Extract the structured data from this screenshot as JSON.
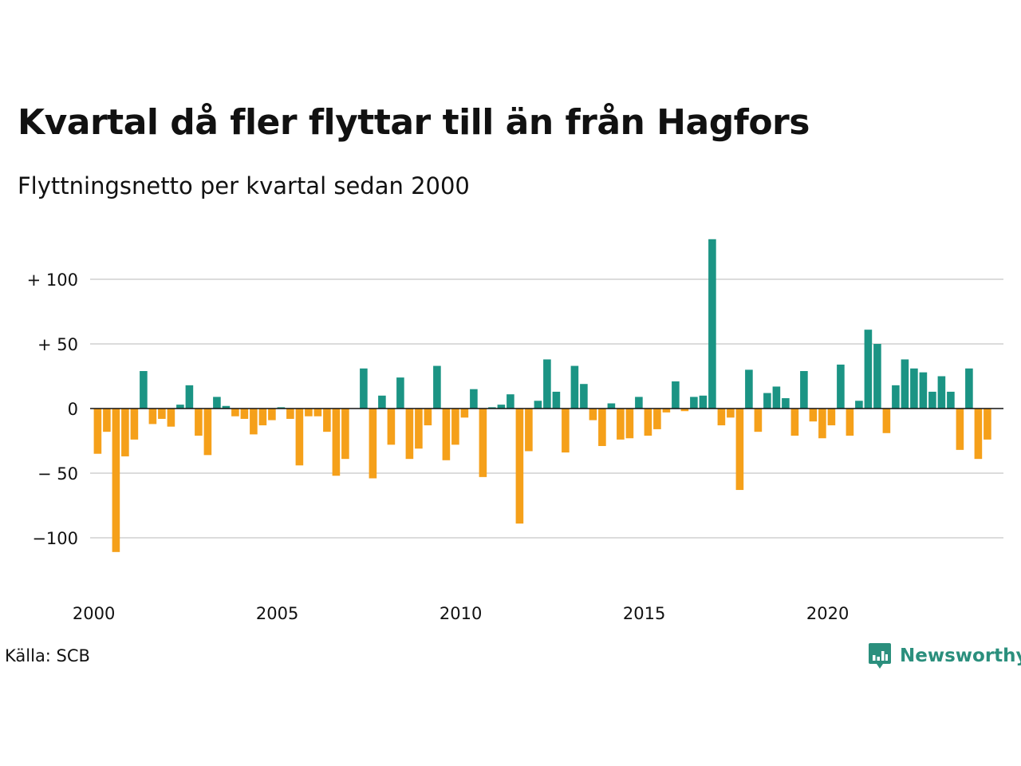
{
  "title": "Kvartal då fler flyttar till än från Hagfors",
  "subtitle": "Flyttningsnetto per kvartal sedan 2000",
  "source": "Källa: SCB",
  "brand": {
    "name": "Newsworthy",
    "icon": "chart-bubble-icon",
    "color": "#2b8f7d"
  },
  "chart_data": {
    "type": "bar",
    "start_year": 2000,
    "x_ticks": [
      "2000",
      "2005",
      "2010",
      "2015",
      "2020"
    ],
    "y_ticks": [
      {
        "value": 100,
        "label": "+ 100"
      },
      {
        "value": 50,
        "label": "+  50"
      },
      {
        "value": 0,
        "label": "0"
      },
      {
        "value": -50,
        "label": "− 50"
      },
      {
        "value": -100,
        "label": "−100"
      }
    ],
    "ylim": [
      -140,
      132
    ],
    "grid": true,
    "colors": {
      "positive": "#1b9484",
      "negative": "#f5a01a",
      "grid": "#dcdcdc",
      "zero": "#111111"
    },
    "values": [
      -35,
      -18,
      -111,
      -37,
      -24,
      29,
      -12,
      -8,
      -14,
      3,
      18,
      -21,
      -36,
      9,
      2,
      -6,
      -8,
      -20,
      -13,
      -9,
      1,
      -8,
      -44,
      -6,
      -6,
      -18,
      -52,
      -39,
      0,
      31,
      -54,
      10,
      -28,
      24,
      -39,
      -31,
      -13,
      33,
      -40,
      -28,
      -7,
      15,
      -53,
      1,
      3,
      11,
      -89,
      -33,
      6,
      38,
      13,
      -34,
      33,
      19,
      -9,
      -29,
      4,
      -24,
      -23,
      9,
      -21,
      -16,
      -3,
      21,
      -2,
      9,
      10,
      131,
      -13,
      -7,
      -63,
      30,
      -18,
      12,
      17,
      8,
      -21,
      29,
      -10,
      -23,
      -13,
      34,
      -21,
      6,
      61,
      50,
      -19,
      18,
      38,
      31,
      28,
      13,
      25,
      13,
      -32,
      31,
      -39,
      -24
    ]
  }
}
